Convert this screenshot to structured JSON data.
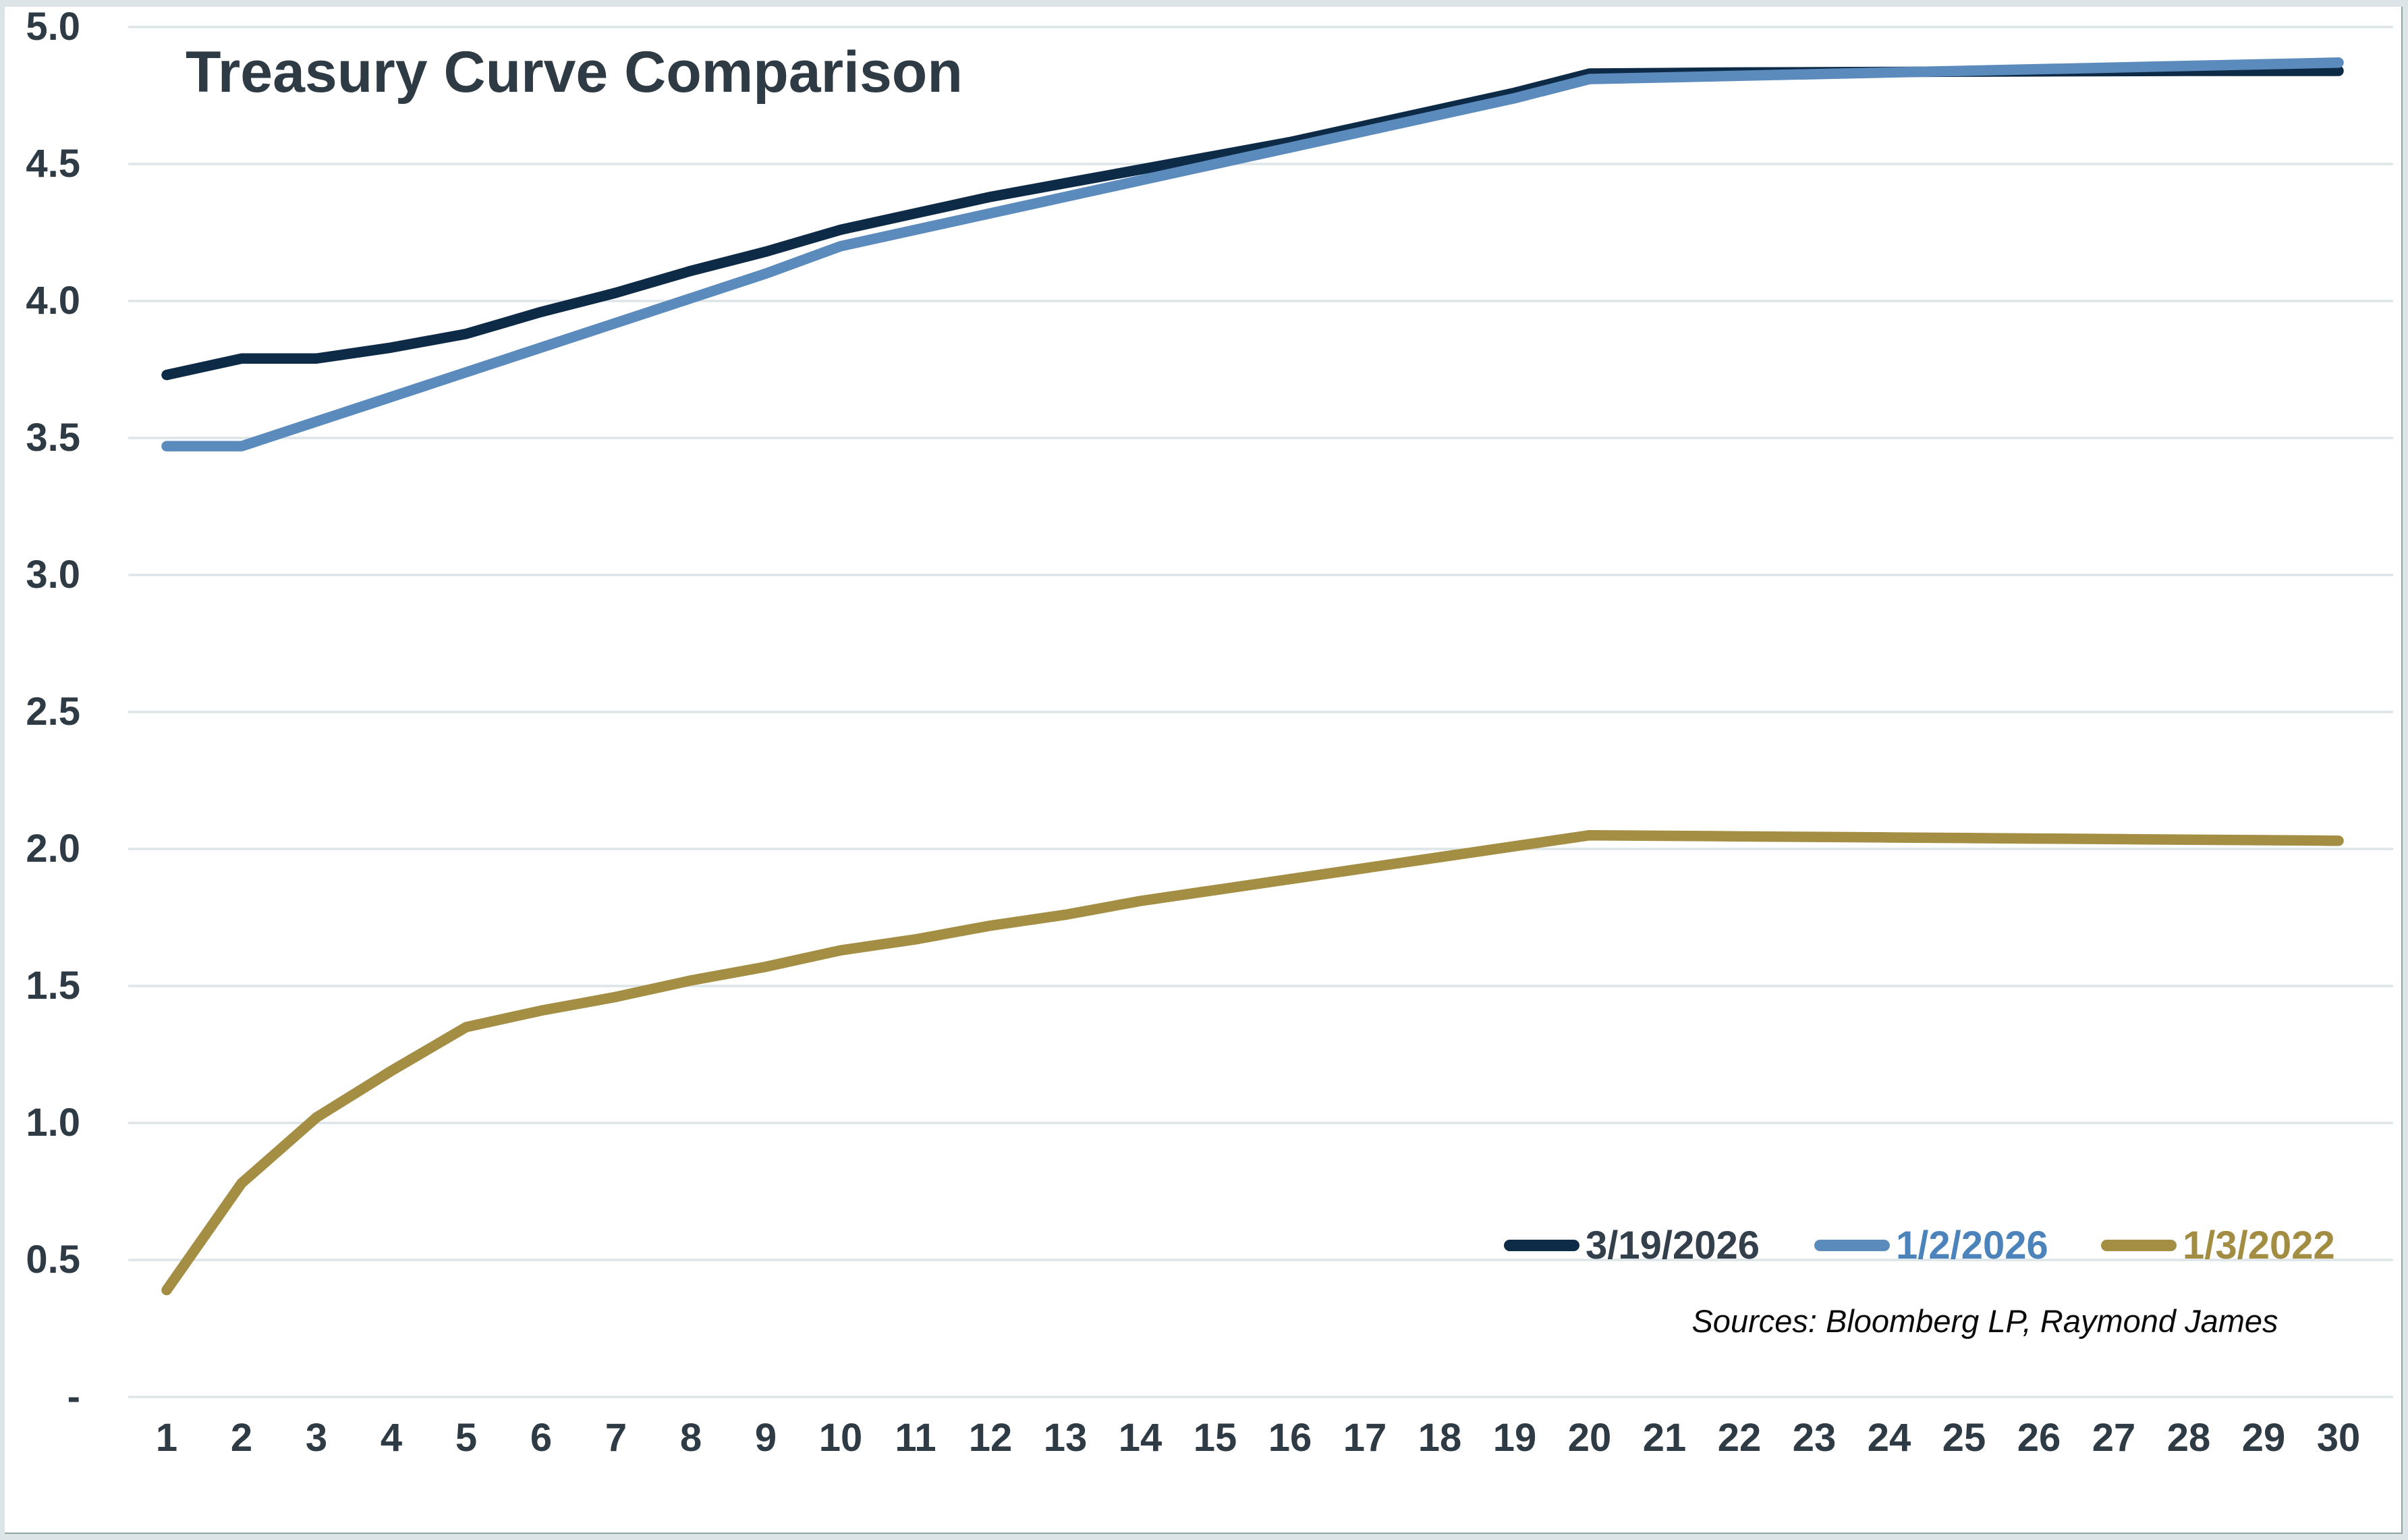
{
  "chart_data": {
    "type": "line",
    "title": "Treasury Curve Comparison",
    "source_note": "Sources: Bloomberg LP, Raymond James",
    "xlabel": "",
    "ylabel": "",
    "x": [
      1,
      2,
      3,
      4,
      5,
      6,
      7,
      8,
      9,
      10,
      11,
      12,
      13,
      14,
      15,
      16,
      17,
      18,
      19,
      20,
      21,
      22,
      23,
      24,
      25,
      26,
      27,
      28,
      29,
      30
    ],
    "ylim": [
      0,
      5
    ],
    "y_ticks": [
      5.0,
      4.5,
      4.0,
      3.5,
      3.0,
      2.5,
      2.0,
      1.5,
      1.0,
      0.5,
      0.0
    ],
    "y_tick_labels": [
      "5.0",
      "4.5",
      "4.0",
      "3.5",
      "3.0",
      "2.5",
      "2.0",
      "1.5",
      "1.0",
      "0.5",
      "-"
    ],
    "grid": "horizontal",
    "legend_position": "inside-bottom-right",
    "series": [
      {
        "name": "3/19/2026",
        "color": "#0d2a46",
        "label_color": "#333f4a",
        "values": [
          3.73,
          3.79,
          3.79,
          3.83,
          3.88,
          3.96,
          4.03,
          4.11,
          4.18,
          4.26,
          4.32,
          4.38,
          4.43,
          4.48,
          4.53,
          4.58,
          4.64,
          4.7,
          4.76,
          4.83,
          4.832,
          4.834,
          4.835,
          4.836,
          4.837,
          4.838,
          4.839,
          4.84,
          4.84,
          4.84
        ]
      },
      {
        "name": "1/2/2026",
        "color": "#5b8abd",
        "label_color": "#4d83bb",
        "values": [
          3.47,
          3.47,
          3.56,
          3.65,
          3.74,
          3.83,
          3.92,
          4.01,
          4.1,
          4.2,
          4.26,
          4.32,
          4.38,
          4.44,
          4.5,
          4.56,
          4.62,
          4.68,
          4.74,
          4.81,
          4.816,
          4.822,
          4.828,
          4.834,
          4.84,
          4.846,
          4.852,
          4.858,
          4.864,
          4.87
        ]
      },
      {
        "name": "1/3/2022",
        "color": "#a38e43",
        "label_color": "#a28d43",
        "values": [
          0.39,
          0.78,
          1.02,
          1.19,
          1.35,
          1.41,
          1.46,
          1.52,
          1.57,
          1.63,
          1.67,
          1.72,
          1.76,
          1.81,
          1.85,
          1.89,
          1.93,
          1.97,
          2.01,
          2.05,
          2.048,
          2.046,
          2.044,
          2.042,
          2.04,
          2.038,
          2.036,
          2.034,
          2.032,
          2.03
        ]
      }
    ],
    "text_color": "#2e3a44",
    "gridline_color": "#dee5e9",
    "frame_border_color": "#dde4e8"
  }
}
